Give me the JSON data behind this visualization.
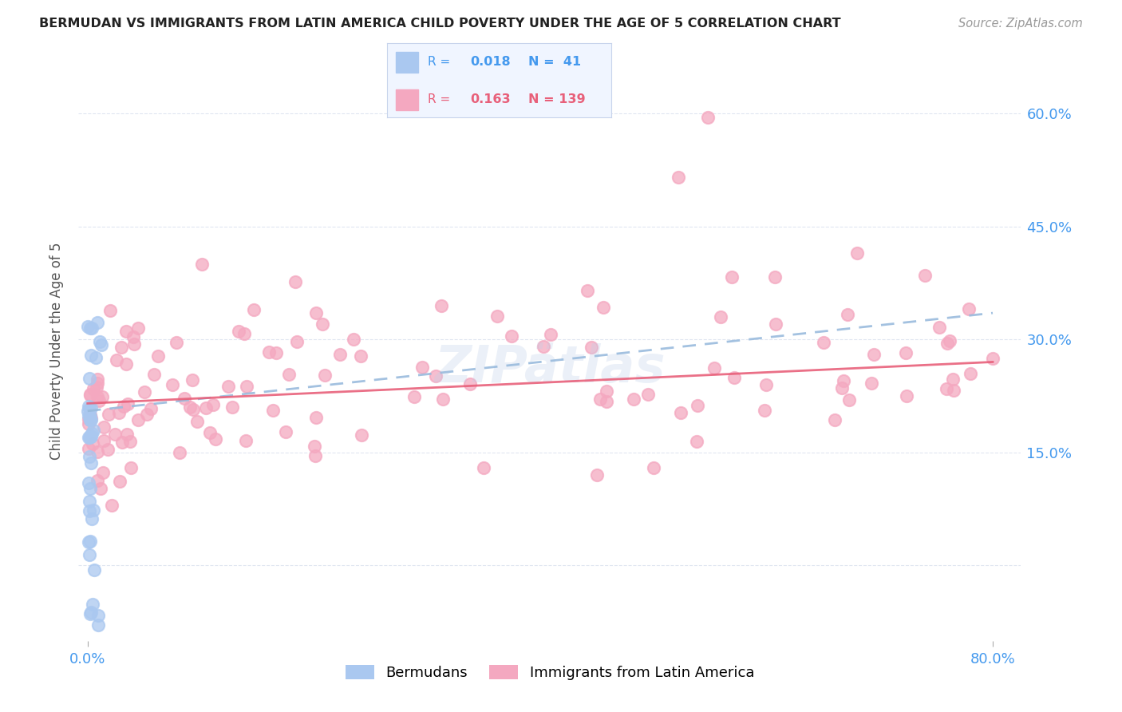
{
  "title": "BERMUDAN VS IMMIGRANTS FROM LATIN AMERICA CHILD POVERTY UNDER THE AGE OF 5 CORRELATION CHART",
  "source": "Source: ZipAtlas.com",
  "ylabel": "Child Poverty Under the Age of 5",
  "xlim": [
    -0.008,
    0.825
  ],
  "ylim": [
    -0.1,
    0.67
  ],
  "ylabel_ticks": [
    0.0,
    0.15,
    0.3,
    0.45,
    0.6
  ],
  "ylabel_tick_labels": [
    "",
    "15.0%",
    "30.0%",
    "45.0%",
    "60.0%"
  ],
  "bermudans_R": 0.018,
  "bermudans_N": 41,
  "latin_R": 0.163,
  "latin_N": 139,
  "bermudans_color": "#aac8f0",
  "latin_color": "#f4a8c0",
  "trend_bermudans_color": "#99bbdd",
  "trend_latin_color": "#e8607a",
  "title_color": "#222222",
  "source_color": "#999999",
  "axis_label_color": "#555555",
  "tick_color": "#4499ee",
  "grid_color": "#dde4f0",
  "berm_trend_start": 0.205,
  "berm_trend_end": 0.335,
  "latin_trend_start": 0.215,
  "latin_trend_end": 0.27
}
